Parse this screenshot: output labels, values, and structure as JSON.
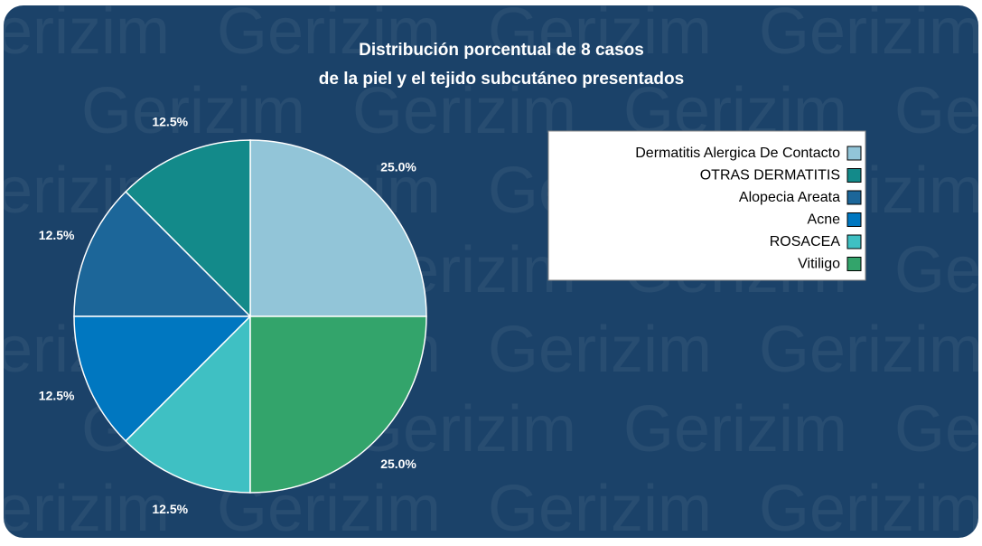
{
  "chart_data": {
    "type": "pie",
    "title": "Distribución porcentual de 8 casos",
    "subtitle": "de la piel y el tejido subcutáneo presentados",
    "watermark": "Gerizim",
    "categories": [
      "Dermatitis Alergica De Contacto",
      "OTRAS DERMATITIS",
      "Alopecia Areata",
      "Acne",
      "ROSACEA",
      "Vitiligo"
    ],
    "values": [
      25,
      12.5,
      12.5,
      12.5,
      12.5,
      25
    ],
    "value_labels": [
      "25.0%",
      "12.5%",
      "12.5%",
      "12.5%",
      "12.5%",
      "25.0%"
    ],
    "colors": [
      "#92c5d8",
      "#138a8a",
      "#1c6699",
      "#0077c0",
      "#3fc0c3",
      "#33a46b"
    ],
    "legend": "top-right"
  }
}
